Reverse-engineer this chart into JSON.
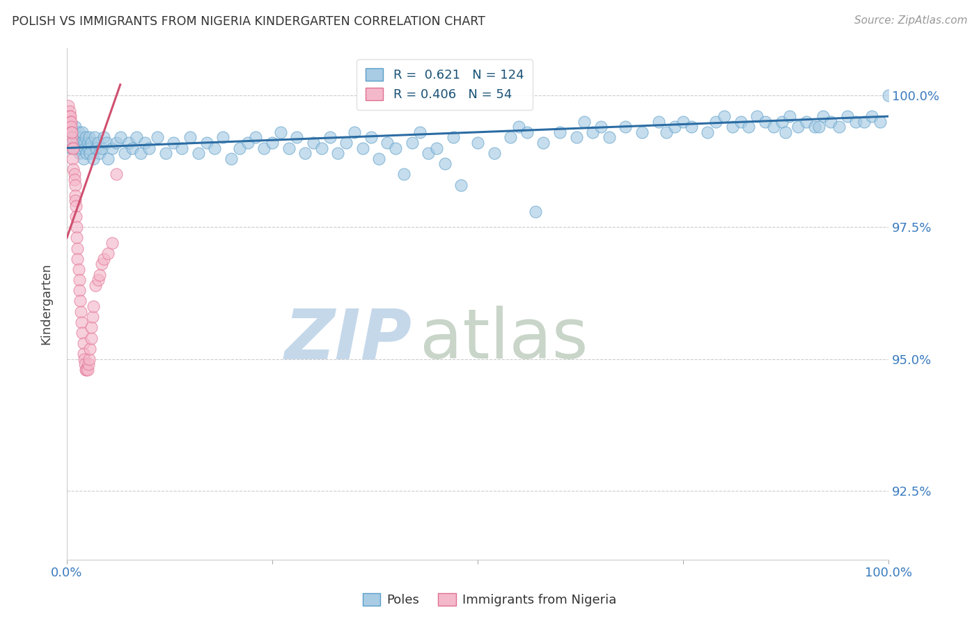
{
  "title": "POLISH VS IMMIGRANTS FROM NIGERIA KINDERGARTEN CORRELATION CHART",
  "source": "Source: ZipAtlas.com",
  "ylabel_left": "Kindergarten",
  "y_ticks": [
    92.5,
    95.0,
    97.5,
    100.0
  ],
  "y_tick_labels": [
    "92.5%",
    "95.0%",
    "97.5%",
    "100.0%"
  ],
  "x_range": [
    0.0,
    100.0
  ],
  "y_range": [
    91.2,
    100.9
  ],
  "blue_R": 0.621,
  "blue_N": 124,
  "pink_R": 0.406,
  "pink_N": 54,
  "blue_color": "#a8cce4",
  "pink_color": "#f4b8cb",
  "blue_edge_color": "#5b9ec9",
  "pink_edge_color": "#e07090",
  "blue_line_color": "#2b6ca3",
  "pink_line_color": "#d05070",
  "watermark_zip": "ZIP",
  "watermark_atlas": "atlas",
  "watermark_color_zip": "#c5d8ea",
  "watermark_color_atlas": "#c8d5c8",
  "legend_blue_label": "Poles",
  "legend_pink_label": "Immigrants from Nigeria",
  "blue_scatter": [
    [
      0.4,
      99.1
    ],
    [
      0.5,
      99.0
    ],
    [
      0.6,
      99.2
    ],
    [
      0.7,
      99.3
    ],
    [
      0.8,
      99.1
    ],
    [
      0.9,
      99.0
    ],
    [
      1.0,
      99.4
    ],
    [
      1.1,
      99.2
    ],
    [
      1.2,
      99.0
    ],
    [
      1.3,
      99.1
    ],
    [
      1.4,
      99.3
    ],
    [
      1.5,
      98.9
    ],
    [
      1.6,
      99.2
    ],
    [
      1.7,
      99.0
    ],
    [
      1.8,
      99.1
    ],
    [
      1.9,
      99.3
    ],
    [
      2.0,
      98.8
    ],
    [
      2.1,
      99.1
    ],
    [
      2.2,
      99.0
    ],
    [
      2.3,
      99.2
    ],
    [
      2.4,
      98.9
    ],
    [
      2.5,
      99.1
    ],
    [
      2.6,
      99.0
    ],
    [
      2.7,
      99.2
    ],
    [
      2.8,
      98.9
    ],
    [
      3.0,
      99.1
    ],
    [
      3.2,
      98.8
    ],
    [
      3.4,
      99.2
    ],
    [
      3.6,
      99.0
    ],
    [
      3.8,
      99.1
    ],
    [
      4.0,
      98.9
    ],
    [
      4.2,
      99.0
    ],
    [
      4.5,
      99.2
    ],
    [
      4.8,
      99.1
    ],
    [
      5.0,
      98.8
    ],
    [
      5.5,
      99.0
    ],
    [
      6.0,
      99.1
    ],
    [
      6.5,
      99.2
    ],
    [
      7.0,
      98.9
    ],
    [
      7.5,
      99.1
    ],
    [
      8.0,
      99.0
    ],
    [
      8.5,
      99.2
    ],
    [
      9.0,
      98.9
    ],
    [
      9.5,
      99.1
    ],
    [
      10.0,
      99.0
    ],
    [
      11.0,
      99.2
    ],
    [
      12.0,
      98.9
    ],
    [
      13.0,
      99.1
    ],
    [
      14.0,
      99.0
    ],
    [
      15.0,
      99.2
    ],
    [
      16.0,
      98.9
    ],
    [
      17.0,
      99.1
    ],
    [
      18.0,
      99.0
    ],
    [
      19.0,
      99.2
    ],
    [
      20.0,
      98.8
    ],
    [
      21.0,
      99.0
    ],
    [
      22.0,
      99.1
    ],
    [
      23.0,
      99.2
    ],
    [
      24.0,
      99.0
    ],
    [
      25.0,
      99.1
    ],
    [
      26.0,
      99.3
    ],
    [
      27.0,
      99.0
    ],
    [
      28.0,
      99.2
    ],
    [
      29.0,
      98.9
    ],
    [
      30.0,
      99.1
    ],
    [
      31.0,
      99.0
    ],
    [
      32.0,
      99.2
    ],
    [
      33.0,
      98.9
    ],
    [
      34.0,
      99.1
    ],
    [
      35.0,
      99.3
    ],
    [
      36.0,
      99.0
    ],
    [
      37.0,
      99.2
    ],
    [
      38.0,
      98.8
    ],
    [
      39.0,
      99.1
    ],
    [
      40.0,
      99.0
    ],
    [
      41.0,
      98.5
    ],
    [
      42.0,
      99.1
    ],
    [
      43.0,
      99.3
    ],
    [
      44.0,
      98.9
    ],
    [
      45.0,
      99.0
    ],
    [
      46.0,
      98.7
    ],
    [
      47.0,
      99.2
    ],
    [
      48.0,
      98.3
    ],
    [
      50.0,
      99.1
    ],
    [
      52.0,
      98.9
    ],
    [
      54.0,
      99.2
    ],
    [
      55.0,
      99.4
    ],
    [
      56.0,
      99.3
    ],
    [
      57.0,
      97.8
    ],
    [
      58.0,
      99.1
    ],
    [
      60.0,
      99.3
    ],
    [
      62.0,
      99.2
    ],
    [
      63.0,
      99.5
    ],
    [
      64.0,
      99.3
    ],
    [
      65.0,
      99.4
    ],
    [
      66.0,
      99.2
    ],
    [
      68.0,
      99.4
    ],
    [
      70.0,
      99.3
    ],
    [
      72.0,
      99.5
    ],
    [
      73.0,
      99.3
    ],
    [
      74.0,
      99.4
    ],
    [
      75.0,
      99.5
    ],
    [
      76.0,
      99.4
    ],
    [
      78.0,
      99.3
    ],
    [
      79.0,
      99.5
    ],
    [
      80.0,
      99.6
    ],
    [
      81.0,
      99.4
    ],
    [
      82.0,
      99.5
    ],
    [
      83.0,
      99.4
    ],
    [
      84.0,
      99.6
    ],
    [
      85.0,
      99.5
    ],
    [
      86.0,
      99.4
    ],
    [
      87.0,
      99.5
    ],
    [
      88.0,
      99.6
    ],
    [
      89.0,
      99.4
    ],
    [
      90.0,
      99.5
    ],
    [
      91.0,
      99.4
    ],
    [
      92.0,
      99.6
    ],
    [
      93.0,
      99.5
    ],
    [
      94.0,
      99.4
    ],
    [
      95.0,
      99.6
    ],
    [
      96.0,
      99.5
    ],
    [
      97.0,
      99.5
    ],
    [
      98.0,
      99.6
    ],
    [
      99.0,
      99.5
    ],
    [
      100.0,
      100.0
    ],
    [
      87.5,
      99.3
    ],
    [
      91.5,
      99.4
    ]
  ],
  "pink_scatter": [
    [
      0.2,
      99.8
    ],
    [
      0.3,
      99.7
    ],
    [
      0.3,
      99.6
    ],
    [
      0.4,
      99.6
    ],
    [
      0.4,
      99.5
    ],
    [
      0.5,
      99.5
    ],
    [
      0.5,
      99.4
    ],
    [
      0.5,
      99.3
    ],
    [
      0.6,
      99.2
    ],
    [
      0.6,
      99.1
    ],
    [
      0.6,
      99.3
    ],
    [
      0.7,
      99.0
    ],
    [
      0.7,
      98.8
    ],
    [
      0.8,
      98.6
    ],
    [
      0.8,
      99.0
    ],
    [
      0.9,
      98.5
    ],
    [
      0.9,
      98.4
    ],
    [
      1.0,
      98.3
    ],
    [
      1.0,
      98.1
    ],
    [
      1.0,
      98.0
    ],
    [
      1.1,
      97.9
    ],
    [
      1.1,
      97.7
    ],
    [
      1.2,
      97.5
    ],
    [
      1.2,
      97.3
    ],
    [
      1.3,
      97.1
    ],
    [
      1.3,
      96.9
    ],
    [
      1.4,
      96.7
    ],
    [
      1.5,
      96.5
    ],
    [
      1.5,
      96.3
    ],
    [
      1.6,
      96.1
    ],
    [
      1.7,
      95.9
    ],
    [
      1.8,
      95.7
    ],
    [
      1.9,
      95.5
    ],
    [
      2.0,
      95.3
    ],
    [
      2.0,
      95.1
    ],
    [
      2.1,
      95.0
    ],
    [
      2.2,
      94.9
    ],
    [
      2.3,
      94.8
    ],
    [
      2.4,
      94.8
    ],
    [
      2.5,
      94.8
    ],
    [
      2.6,
      94.9
    ],
    [
      2.7,
      95.0
    ],
    [
      2.8,
      95.2
    ],
    [
      3.0,
      95.4
    ],
    [
      3.0,
      95.6
    ],
    [
      3.1,
      95.8
    ],
    [
      3.2,
      96.0
    ],
    [
      3.5,
      96.4
    ],
    [
      3.8,
      96.5
    ],
    [
      4.0,
      96.6
    ],
    [
      4.2,
      96.8
    ],
    [
      4.5,
      96.9
    ],
    [
      5.0,
      97.0
    ],
    [
      5.5,
      97.2
    ],
    [
      6.0,
      98.5
    ]
  ]
}
